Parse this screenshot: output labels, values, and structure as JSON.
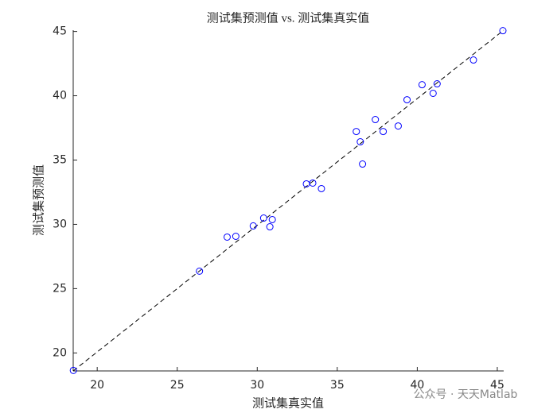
{
  "chart_data": {
    "type": "scatter",
    "title": "测试集预测值 vs. 测试集真实值",
    "xlabel": "测试集真实值",
    "ylabel": "测试集预测值",
    "watermark": "公众号 · 天天Matlab",
    "xlim": [
      18.5,
      45.4
    ],
    "ylim": [
      18.6,
      45.1
    ],
    "xticks": [
      20,
      25,
      30,
      35,
      40,
      45
    ],
    "yticks": [
      20,
      25,
      30,
      35,
      40,
      45
    ],
    "color": "#0000ff",
    "diagonal_line": true,
    "x": [
      26.39,
      28.12,
      28.66,
      29.75,
      30.4,
      30.79,
      30.94,
      33.07,
      33.47,
      34.01,
      36.19,
      36.44,
      36.58,
      37.38,
      37.87,
      38.81,
      39.36,
      40.3,
      40.99,
      41.24,
      43.51,
      45.35,
      18.51
    ],
    "y": [
      26.36,
      29.01,
      29.07,
      29.88,
      30.49,
      29.81,
      30.37,
      33.15,
      33.21,
      32.78,
      37.22,
      36.42,
      34.69,
      38.15,
      37.22,
      37.65,
      39.69,
      40.86,
      40.19,
      40.93,
      42.78,
      45.06,
      18.64
    ]
  }
}
